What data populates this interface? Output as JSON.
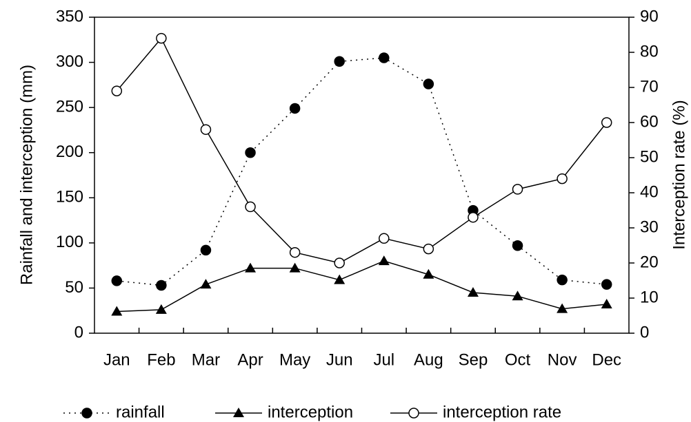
{
  "chart_data": {
    "type": "line",
    "categories": [
      "Jan",
      "Feb",
      "Mar",
      "Apr",
      "May",
      "Jun",
      "Jul",
      "Aug",
      "Sep",
      "Oct",
      "Nov",
      "Dec"
    ],
    "ylabel": "Rainfall and interception (mm)",
    "y2label": "Interception rate (%)",
    "ylim": [
      0,
      350
    ],
    "yticks": [
      0,
      50,
      100,
      150,
      200,
      250,
      300,
      350
    ],
    "y2lim": [
      0,
      90
    ],
    "y2ticks": [
      0,
      10,
      20,
      30,
      40,
      50,
      60,
      70,
      80,
      90
    ],
    "grid": false,
    "legend": "bottom",
    "series": [
      {
        "name": "rainfall",
        "color": "#000000",
        "dash": "dotted",
        "marker": "filled-circle",
        "values": [
          58,
          53,
          92,
          200,
          249,
          301,
          305,
          276,
          136,
          97,
          59,
          54
        ]
      },
      {
        "name": "interception",
        "color": "#000000",
        "dash": "solid",
        "marker": "triangle",
        "values": [
          24,
          26,
          54,
          72,
          72,
          59,
          80,
          65,
          45,
          41,
          27,
          32
        ]
      },
      {
        "name": "interception rate",
        "color": "#000000",
        "dash": "solid",
        "marker": "open-circle",
        "axis": "y2",
        "values": [
          69,
          84,
          58,
          36,
          23,
          20,
          27,
          24,
          33,
          41,
          44,
          60
        ]
      }
    ]
  }
}
